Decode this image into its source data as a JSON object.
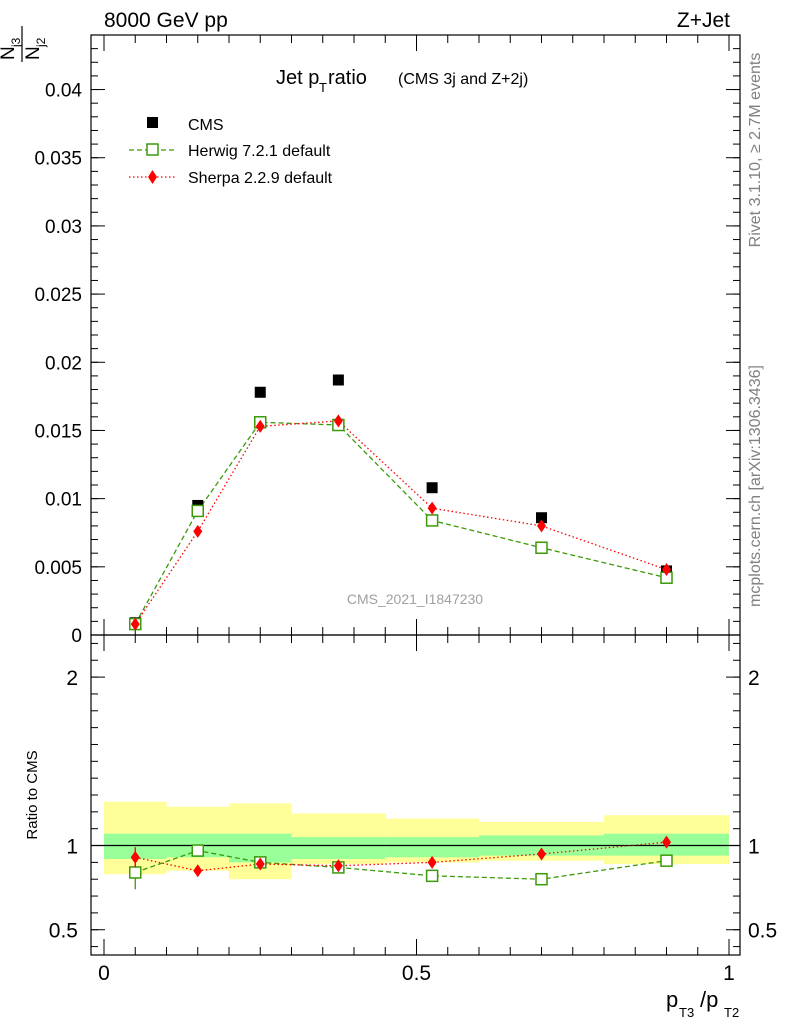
{
  "header": {
    "left": "8000 GeV pp",
    "right": "Z+Jet",
    "title_main": "Jet p",
    "title_sub": "T",
    "title_rest": " ratio",
    "title_small": "(CMS 3j and Z+2j)"
  },
  "side_text": {
    "rivet": "Rivet 3.1.10, ≥ 2.7M events",
    "mcplots": "mcplots.cern.ch [arXiv:1306.3436]"
  },
  "watermark": "CMS_2021_I1847230",
  "y_label": {
    "num": "N",
    "num_sub": "j3",
    "den": "N",
    "den_sub": "j2"
  },
  "ratio_label": "Ratio to CMS",
  "x_label": {
    "p1": "p",
    "s1": "T3",
    "slash": "/p",
    "s2": "T2"
  },
  "legend": [
    {
      "label": "CMS"
    },
    {
      "label": "Herwig 7.2.1 default"
    },
    {
      "label": "Sherpa 2.2.9 default"
    }
  ],
  "colors": {
    "cms": "#000000",
    "herwig": "#3a9a0a",
    "sherpa": "#ff0000",
    "band_inner": "#99ff99",
    "band_outer": "#ffff99"
  },
  "chart_data": {
    "type": "scatter",
    "x_ticks": [
      0,
      0.5,
      1
    ],
    "x_tick_labels": [
      "0",
      "0.5",
      "1"
    ],
    "xlim": [
      0,
      1
    ],
    "main": {
      "ylim": [
        0,
        0.044
      ],
      "y_ticks": [
        0,
        0.005,
        0.01,
        0.015,
        0.02,
        0.025,
        0.03,
        0.035,
        0.04
      ],
      "y_tick_labels": [
        "0",
        "0.005",
        "0.01",
        "0.015",
        "0.02",
        "0.025",
        "0.03",
        "0.035",
        "0.04"
      ]
    },
    "ratio": {
      "ylim": [
        0.35,
        2.25
      ],
      "y_ticks": [
        0.5,
        1,
        2
      ],
      "y_tick_labels": [
        "0.5",
        "1",
        "2"
      ]
    },
    "bins": [
      [
        0.0,
        0.1
      ],
      [
        0.1,
        0.2
      ],
      [
        0.2,
        0.3
      ],
      [
        0.3,
        0.45
      ],
      [
        0.45,
        0.6
      ],
      [
        0.6,
        0.8
      ],
      [
        0.8,
        1.0
      ]
    ],
    "series": [
      {
        "name": "CMS",
        "style": "square",
        "x": [
          0.05,
          0.15,
          0.25,
          0.375,
          0.525,
          0.7,
          0.9
        ],
        "y": [
          0.0009,
          0.0095,
          0.0178,
          0.0187,
          0.0108,
          0.0086,
          0.0047
        ]
      },
      {
        "name": "Herwig 7.2.1 default",
        "style": "open-square",
        "line": "dashed",
        "x": [
          0.05,
          0.15,
          0.25,
          0.375,
          0.525,
          0.7,
          0.9
        ],
        "y": [
          0.0008,
          0.0091,
          0.0156,
          0.0154,
          0.0084,
          0.0064,
          0.0042
        ],
        "ratio": [
          0.84,
          0.97,
          0.9,
          0.87,
          0.82,
          0.8,
          0.91
        ],
        "ratio_err": [
          0.1,
          0.015,
          0.015,
          0.015,
          0.015,
          0.02,
          0.03
        ]
      },
      {
        "name": "Sherpa 2.2.9 default",
        "style": "diamond",
        "line": "dotted",
        "x": [
          0.05,
          0.15,
          0.25,
          0.375,
          0.525,
          0.7,
          0.9
        ],
        "y": [
          0.0008,
          0.0076,
          0.0153,
          0.0157,
          0.0093,
          0.008,
          0.0048
        ],
        "ratio": [
          0.93,
          0.85,
          0.89,
          0.88,
          0.9,
          0.95,
          1.02
        ],
        "ratio_err": [
          0.06,
          0.01,
          0.01,
          0.01,
          0.01,
          0.01,
          0.02
        ]
      }
    ],
    "uncertainty_band": {
      "inner": [
        [
          0.92,
          1.07
        ],
        [
          0.93,
          1.07
        ],
        [
          0.9,
          1.07
        ],
        [
          0.92,
          1.05
        ],
        [
          0.93,
          1.05
        ],
        [
          0.94,
          1.06
        ],
        [
          0.94,
          1.07
        ]
      ],
      "outer": [
        [
          0.83,
          1.26
        ],
        [
          0.85,
          1.23
        ],
        [
          0.8,
          1.25
        ],
        [
          0.89,
          1.19
        ],
        [
          0.9,
          1.16
        ],
        [
          0.91,
          1.14
        ],
        [
          0.89,
          1.18
        ]
      ]
    }
  }
}
